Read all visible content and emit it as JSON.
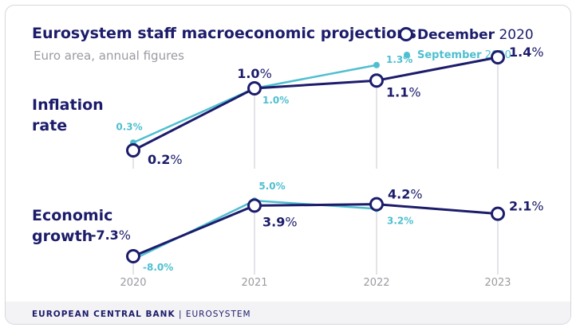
{
  "title": "Eurosystem staff macroeconomic projections",
  "subtitle": "Euro area, annual figures",
  "legend": {
    "december_bold": "December",
    "december_year": "2020",
    "september_bold": "September",
    "september_year": "2020"
  },
  "footer": {
    "bank": "EUROPEAN CENTRAL BANK",
    "separator": "|",
    "system": "EUROSYSTEM"
  },
  "colors": {
    "december": "#1c1c6b",
    "september": "#4fbfd0",
    "gridline": "#c8c8d0"
  },
  "chart_data": [
    {
      "type": "line",
      "row_label_lines": [
        "Inflation",
        "rate"
      ],
      "x": [
        "2020",
        "2021",
        "2022",
        "2023"
      ],
      "unit": "%",
      "series": [
        {
          "name": "December 2020",
          "values": [
            0.2,
            1.0,
            1.1,
            1.4
          ]
        },
        {
          "name": "September 2020",
          "values": [
            0.3,
            1.0,
            1.3,
            null
          ]
        }
      ]
    },
    {
      "type": "line",
      "row_label_lines": [
        "Economic",
        "growth"
      ],
      "x": [
        "2020",
        "2021",
        "2022",
        "2023"
      ],
      "unit": "%",
      "series": [
        {
          "name": "December 2020",
          "values": [
            -7.3,
            3.9,
            4.2,
            2.1
          ]
        },
        {
          "name": "September 2020",
          "values": [
            -8.0,
            5.0,
            3.2,
            null
          ]
        }
      ]
    }
  ]
}
